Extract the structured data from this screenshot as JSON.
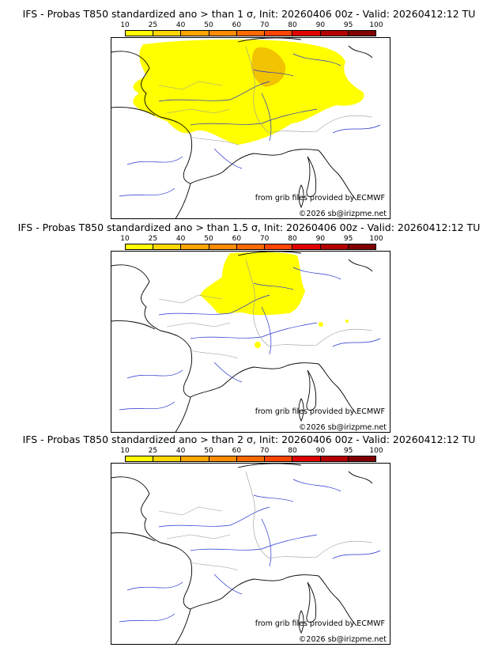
{
  "panels": [
    {
      "title": "IFS - Probas T850  standardized ano > than 1 σ, Init: 20260406 00z - Valid: 20260412:12 TU",
      "prob_level": "high"
    },
    {
      "title": "IFS - Probas T850  standardized ano > than 1.5 σ, Init: 20260406 00z - Valid: 20260412:12 TU",
      "prob_level": "medium"
    },
    {
      "title": "IFS - Probas T850  standardized ano > than 2 σ, Init: 20260406 00z - Valid: 20260412:12 TU",
      "prob_level": "none"
    }
  ],
  "colorbar": {
    "ticks": [
      "10",
      "25",
      "40",
      "50",
      "60",
      "70",
      "80",
      "90",
      "95",
      "100"
    ],
    "colors": [
      "#ffff00",
      "#ffd700",
      "#ffa500",
      "#ff8c00",
      "#ff6a00",
      "#ff4500",
      "#e00000",
      "#b40000",
      "#800000"
    ]
  },
  "credits": {
    "source": "from grib files provided by ECMWF",
    "copyright": "©2026 sb@irizpme.net"
  },
  "colors": {
    "coast": "#000000",
    "rivers": "#2233cc",
    "borders": "#9a9a9a",
    "prob_low": "#ffff00",
    "prob_mid": "#f2c300"
  }
}
